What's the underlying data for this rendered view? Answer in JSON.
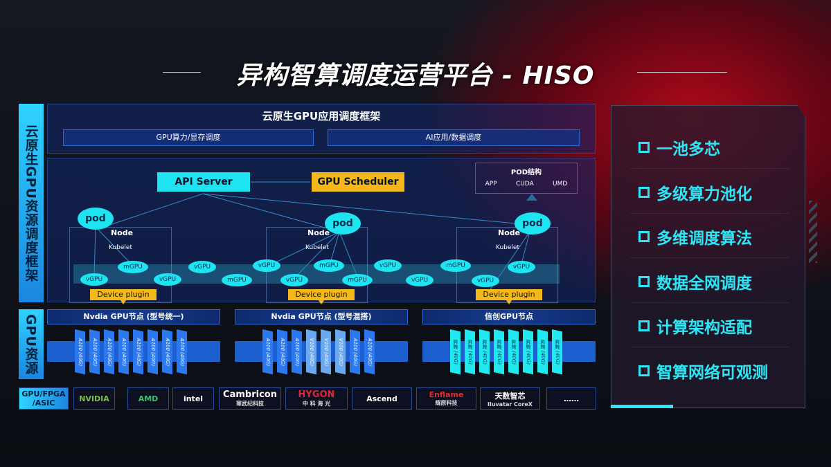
{
  "title": "异构智算调度运营平台 - HISO",
  "left_labels": {
    "framework": "云原生GPU资源调度框架",
    "resources": "GPU资源"
  },
  "framework": {
    "title": "云原生GPU应用调度框架",
    "bar_left": "GPU算力/显存调度",
    "bar_right": "AI应用/数据调度"
  },
  "diagram": {
    "api_server": "API Server",
    "gpu_scheduler": "GPU Scheduler",
    "pod_structure": {
      "title": "POD结构",
      "items": [
        "APP",
        "CUDA",
        "UMD"
      ]
    },
    "pod": "pod",
    "node": "Node",
    "kubelet": "Kubelet",
    "device_plugin": "Device plugin",
    "vgpu": "vGPU",
    "mgpu": "mGPU"
  },
  "gpu_nodes": [
    {
      "title": "Nvdia GPU节点 (型号统一)",
      "cards": [
        "A100 (40G)",
        "A100 (40G)",
        "A100 (40G)",
        "A100 (40G)",
        "A100 (40G)",
        "A100 (40G)",
        "A100 (40G)",
        "A100 (40G)"
      ]
    },
    {
      "title": "Nvdia GPU节点 (型号混搭)",
      "cards": [
        "A100 (40G)",
        "A100 (40G)",
        "A100 (40G)",
        "V100 (40G)",
        "V100 (40G)",
        "V100 (40G)",
        "A100 (40G)",
        "A100 (40G)"
      ]
    },
    {
      "title": "信创GPU节点",
      "cards": [
        "昇腾 (40G)",
        "昇腾 (40G)",
        "昇腾 (40G)",
        "昇腾 (40G)",
        "昇腾 (40G)",
        "昇腾 (40G)",
        "昇腾 (40G)",
        "昇腾 (40G)"
      ]
    }
  ],
  "vendors": {
    "label": "GPU/FPGA /ASIC",
    "logos": [
      {
        "name": "NVIDIA",
        "sub": "",
        "color": "#7ac143"
      },
      {
        "name": "AMD",
        "sub": "",
        "color": "#36c36b"
      },
      {
        "name": "intel",
        "sub": "",
        "color": "#ffffff"
      },
      {
        "name": "Cambricon",
        "sub": "寒武纪科技",
        "color": "#ffffff"
      },
      {
        "name": "HYGON",
        "sub": "中 科 海 光",
        "color": "#d8283a"
      },
      {
        "name": "Ascend",
        "sub": "",
        "color": "#ffffff"
      },
      {
        "name": "Enflame",
        "sub": "燧原科技",
        "color": "#e0302a"
      },
      {
        "name": "天数智芯",
        "sub": "Iluvatar CoreX",
        "color": "#ffffff"
      },
      {
        "name": "……",
        "sub": "",
        "color": "#ffffff"
      }
    ]
  },
  "features": [
    "一池多芯",
    "多级算力池化",
    "多维调度算法",
    "数据全网调度",
    "计算架构适配",
    "智算网络可观测"
  ],
  "colors": {
    "cyan": "#1ee3f0",
    "orange": "#f5b81a",
    "blue": "#1b5fd0",
    "red": "#b0081a"
  }
}
